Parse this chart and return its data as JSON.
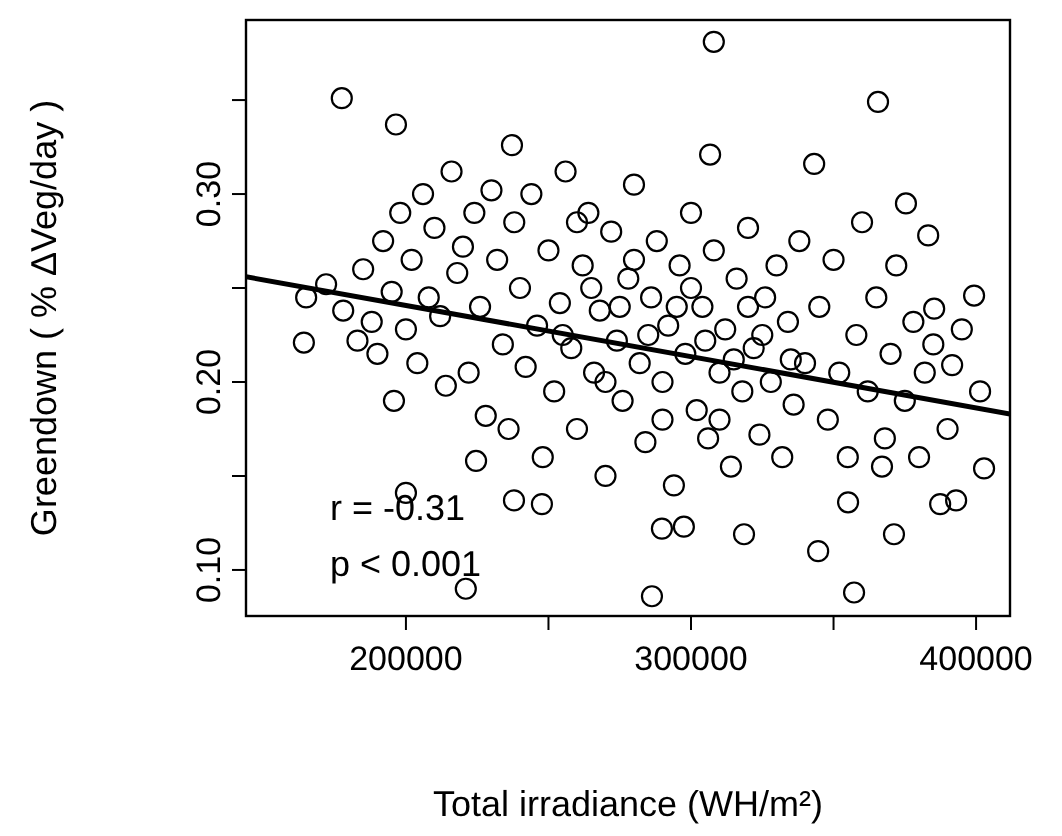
{
  "chart_data": {
    "type": "scatter",
    "xlabel": "Total irradiance (WH/m²)",
    "ylabel": "Greendown ( % ΔVeg/day )",
    "annotations": [
      "r = -0.31",
      "p < 0.001"
    ],
    "xlim": [
      143900,
      411900
    ],
    "xticks": [
      200000,
      {
        "value": 250000,
        "label": null
      },
      300000,
      {
        "value": 350000,
        "label": null
      },
      400000
    ],
    "ylim": [
      0.0755,
      0.3926
    ],
    "yticks": [
      {
        "value": 0.1,
        "label": "0.10"
      },
      {
        "value": 0.15,
        "label": null
      },
      {
        "value": 0.2,
        "label": "0.20"
      },
      {
        "value": 0.25,
        "label": null
      },
      {
        "value": 0.3,
        "label": "0.30"
      },
      {
        "value": 0.35,
        "label": null
      }
    ],
    "marker": "circle",
    "grid": false,
    "series": [
      {
        "color": "#000000",
        "x": [
          177500,
          196500,
          237200,
          308000,
          365600,
          306700,
          343200,
          375400,
          383200,
          399300,
          164200,
          195800,
          200000,
          221000,
          237900,
          247700,
          224600,
          286300,
          357200,
          344600,
          371200,
          402800,
          393000,
          387400,
          318600,
          297500,
          289800,
          401400,
          367000,
          355100,
          391600,
          385300,
          165000,
          172000,
          178000,
          183000,
          185000,
          188000,
          190000,
          192000,
          195000,
          198000,
          200000,
          202000,
          204000,
          206000,
          208000,
          210000,
          212000,
          214000,
          216000,
          218000,
          220000,
          222000,
          224000,
          226000,
          228000,
          230000,
          232000,
          234000,
          236000,
          238000,
          240000,
          242000,
          244000,
          246000,
          248000,
          250000,
          252000,
          254000,
          256000,
          258000,
          260000,
          262000,
          264000,
          266000,
          268000,
          270000,
          272000,
          274000,
          276000,
          278000,
          280000,
          282000,
          284000,
          286000,
          288000,
          290000,
          292000,
          294000,
          296000,
          298000,
          300000,
          302000,
          304000,
          306000,
          308000,
          310000,
          312000,
          314000,
          316000,
          318000,
          320000,
          322000,
          324000,
          326000,
          328000,
          330000,
          332000,
          334000,
          336000,
          338000,
          340000,
          255000,
          265000,
          275000,
          285000,
          295000,
          305000,
          315000,
          325000,
          335000,
          260000,
          280000,
          300000,
          320000,
          290000,
          310000,
          270000,
          345000,
          348000,
          350000,
          352000,
          355000,
          358000,
          360000,
          362000,
          365000,
          368000,
          370000,
          372000,
          375000,
          378000,
          380000,
          382000,
          385000,
          390000,
          395000
        ],
        "values": [
          0.351,
          0.337,
          0.326,
          0.381,
          0.349,
          0.321,
          0.316,
          0.295,
          0.278,
          0.246,
          0.221,
          0.19,
          0.141,
          0.09,
          0.137,
          0.135,
          0.158,
          0.086,
          0.088,
          0.11,
          0.119,
          0.154,
          0.137,
          0.135,
          0.119,
          0.123,
          0.122,
          0.195,
          0.155,
          0.136,
          0.209,
          0.239,
          0.245,
          0.252,
          0.238,
          0.222,
          0.26,
          0.232,
          0.215,
          0.275,
          0.248,
          0.29,
          0.228,
          0.265,
          0.21,
          0.3,
          0.245,
          0.282,
          0.235,
          0.198,
          0.312,
          0.258,
          0.272,
          0.205,
          0.29,
          0.24,
          0.182,
          0.302,
          0.265,
          0.22,
          0.175,
          0.285,
          0.25,
          0.208,
          0.3,
          0.23,
          0.16,
          0.27,
          0.195,
          0.242,
          0.312,
          0.218,
          0.175,
          0.262,
          0.29,
          0.205,
          0.238,
          0.15,
          0.28,
          0.222,
          0.19,
          0.255,
          0.305,
          0.21,
          0.168,
          0.245,
          0.275,
          0.2,
          0.23,
          0.145,
          0.262,
          0.215,
          0.29,
          0.185,
          0.24,
          0.17,
          0.27,
          0.205,
          0.228,
          0.155,
          0.255,
          0.195,
          0.282,
          0.218,
          0.172,
          0.245,
          0.2,
          0.262,
          0.16,
          0.232,
          0.188,
          0.275,
          0.21,
          0.225,
          0.25,
          0.24,
          0.225,
          0.24,
          0.222,
          0.212,
          0.225,
          0.212,
          0.285,
          0.265,
          0.25,
          0.24,
          0.18,
          0.18,
          0.2,
          0.24,
          0.18,
          0.265,
          0.205,
          0.16,
          0.225,
          0.285,
          0.195,
          0.245,
          0.17,
          0.215,
          0.262,
          0.19,
          0.232,
          0.16,
          0.205,
          0.22,
          0.175,
          0.228
        ]
      },
      {
        "type": "line",
        "color": "#000000",
        "marker": "none",
        "x": [
          143900,
          411900
        ],
        "values": [
          0.256,
          0.183
        ]
      }
    ]
  }
}
